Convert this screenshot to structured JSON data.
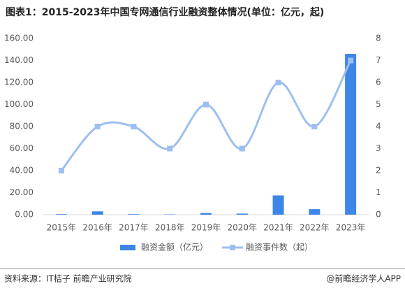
{
  "chart_data": {
    "type": "bar-line",
    "title": "图表1：2015-2023年中国专网通信行业融资整体情况(单位：亿元，起)",
    "categories": [
      "2015年",
      "2016年",
      "2017年",
      "2018年",
      "2019年",
      "2020年",
      "2021年",
      "2022年",
      "2023年"
    ],
    "series": [
      {
        "name": "融资金额（亿元）",
        "type": "bar",
        "color": "#3d85e6",
        "values": [
          0.5,
          3,
          0.5,
          0.3,
          1.5,
          1,
          17.5,
          5,
          146
        ]
      },
      {
        "name": "融资事件数（起）",
        "type": "line",
        "axis": "y2",
        "color": "#9dbff0",
        "values": [
          2,
          4,
          4,
          3,
          5,
          3,
          6,
          4,
          7
        ]
      }
    ],
    "ylim": [
      0,
      160
    ],
    "yticks": [
      {
        "value": 0,
        "label": "0.00"
      },
      {
        "value": 20,
        "label": "20.00"
      },
      {
        "value": 40,
        "label": "40.00"
      },
      {
        "value": 60,
        "label": "60.00"
      },
      {
        "value": 80,
        "label": "80.00"
      },
      {
        "value": 100,
        "label": "100.00"
      },
      {
        "value": 120,
        "label": "120.00"
      },
      {
        "value": 140,
        "label": "140.00"
      },
      {
        "value": 160,
        "label": "160.00"
      }
    ],
    "y2lim": [
      0,
      8
    ],
    "y2ticks": [
      0,
      1,
      2,
      3,
      4,
      5,
      6,
      7,
      8
    ],
    "source": "资料来源：IT桔子 前瞻产业研究院",
    "credit": "@前瞻经济学人APP"
  }
}
